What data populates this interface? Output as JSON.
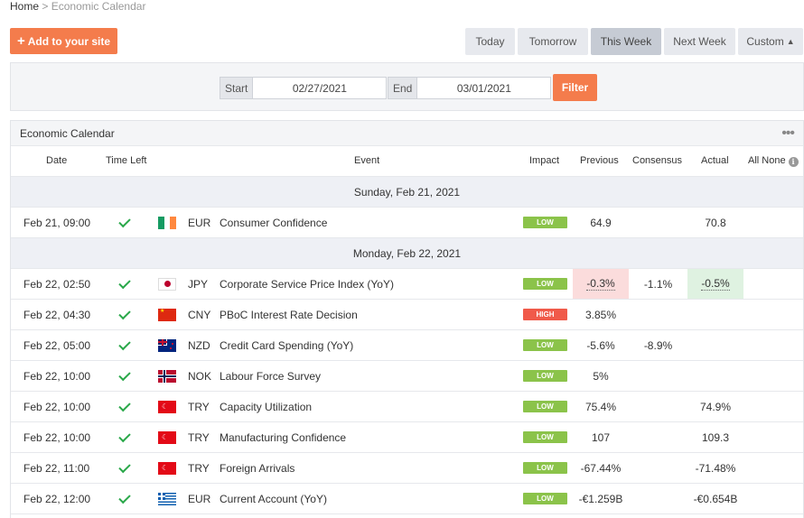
{
  "breadcrumb": {
    "home": "Home",
    "separator": ">",
    "current": "Economic Calendar"
  },
  "add_button": {
    "icon": "plus-icon",
    "label": "Add to your site"
  },
  "range_tabs": [
    {
      "label": "Today",
      "active": false
    },
    {
      "label": "Tomorrow",
      "active": false
    },
    {
      "label": "This Week",
      "active": true
    },
    {
      "label": "Next Week",
      "active": false
    },
    {
      "label": "Custom",
      "active": false,
      "icon": "chevron-up-icon",
      "glyph": "▲"
    }
  ],
  "filter": {
    "start_label": "Start",
    "start_value": "02/27/2021",
    "end_label": "End",
    "end_value": "03/01/2021",
    "button": "Filter"
  },
  "panel": {
    "title": "Economic Calendar",
    "menu_icon": "more-dots-icon",
    "menu_glyph": "•••"
  },
  "columns": {
    "date": "Date",
    "time_left": "Time Left",
    "event": "Event",
    "impact": "Impact",
    "previous": "Previous",
    "consensus": "Consensus",
    "actual": "Actual",
    "all_none": "All None",
    "info_icon": "info-icon",
    "info_glyph": "i"
  },
  "colors": {
    "accent": "#f47c4c",
    "low": "#8bc34a",
    "high": "#f05a4a",
    "previous_negative_bg": "#fbdcdc",
    "actual_positive_bg": "#dff2e1",
    "check": "#2aa84a"
  },
  "rows": [
    {
      "type": "day",
      "label": "Sunday, Feb 21, 2021"
    },
    {
      "type": "event",
      "date": "Feb 21, 09:00",
      "flag": "IE",
      "currency": "EUR",
      "event": "Consumer Confidence",
      "impact": "LOW",
      "previous": "64.9",
      "consensus": "",
      "actual": "70.8"
    },
    {
      "type": "day",
      "label": "Monday, Feb 22, 2021"
    },
    {
      "type": "event",
      "date": "Feb 22, 02:50",
      "flag": "JP",
      "currency": "JPY",
      "event": "Corporate Service Price Index (YoY)",
      "impact": "LOW",
      "previous": "-0.3%",
      "consensus": "-1.1%",
      "actual": "-0.5%",
      "previous_highlight": "negative",
      "actual_highlight": "positive"
    },
    {
      "type": "event",
      "date": "Feb 22, 04:30",
      "flag": "CN",
      "currency": "CNY",
      "event": "PBoC Interest Rate Decision",
      "impact": "HIGH",
      "previous": "3.85%",
      "consensus": "",
      "actual": ""
    },
    {
      "type": "event",
      "date": "Feb 22, 05:00",
      "flag": "NZ",
      "currency": "NZD",
      "event": "Credit Card Spending (YoY)",
      "impact": "LOW",
      "previous": "-5.6%",
      "consensus": "-8.9%",
      "actual": ""
    },
    {
      "type": "event",
      "date": "Feb 22, 10:00",
      "flag": "NO",
      "currency": "NOK",
      "event": "Labour Force Survey",
      "impact": "LOW",
      "previous": "5%",
      "consensus": "",
      "actual": ""
    },
    {
      "type": "event",
      "date": "Feb 22, 10:00",
      "flag": "TR",
      "currency": "TRY",
      "event": "Capacity Utilization",
      "impact": "LOW",
      "previous": "75.4%",
      "consensus": "",
      "actual": "74.9%"
    },
    {
      "type": "event",
      "date": "Feb 22, 10:00",
      "flag": "TR",
      "currency": "TRY",
      "event": "Manufacturing Confidence",
      "impact": "LOW",
      "previous": "107",
      "consensus": "",
      "actual": "109.3"
    },
    {
      "type": "event",
      "date": "Feb 22, 11:00",
      "flag": "TR",
      "currency": "TRY",
      "event": "Foreign Arrivals",
      "impact": "LOW",
      "previous": "-67.44%",
      "consensus": "",
      "actual": "-71.48%"
    },
    {
      "type": "event",
      "date": "Feb 22, 12:00",
      "flag": "GR",
      "currency": "EUR",
      "event": "Current Account (YoY)",
      "impact": "LOW",
      "previous": "-€1.259B",
      "consensus": "",
      "actual": "-€0.654B"
    }
  ]
}
